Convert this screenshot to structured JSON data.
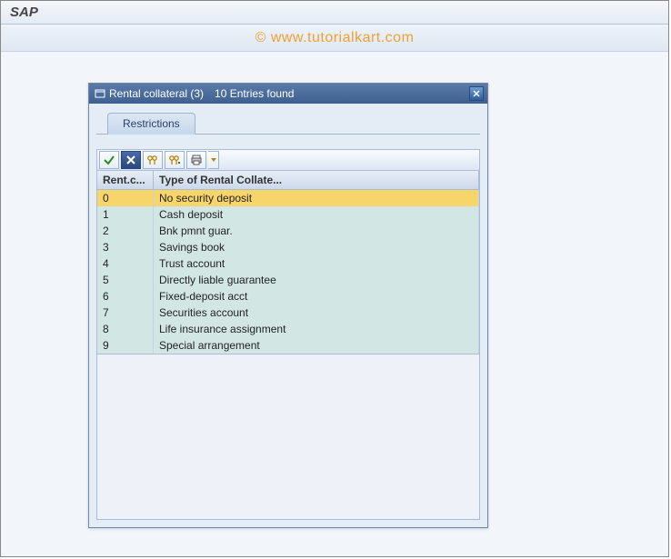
{
  "app": {
    "title": "SAP"
  },
  "watermark": "© www.tutorialkart.com",
  "dialog": {
    "title": "Rental collateral (3)",
    "entries_found": "10 Entries found",
    "tab_label": "Restrictions",
    "columns": {
      "code": "Rent.c...",
      "type": "Type of Rental Collate..."
    },
    "rows": [
      {
        "code": "0",
        "type": "No security deposit",
        "selected": true
      },
      {
        "code": "1",
        "type": "Cash deposit"
      },
      {
        "code": "2",
        "type": "Bnk pmnt guar."
      },
      {
        "code": "3",
        "type": "Savings book"
      },
      {
        "code": "4",
        "type": "Trust account"
      },
      {
        "code": "5",
        "type": "Directly liable guarantee"
      },
      {
        "code": "6",
        "type": "Fixed-deposit acct"
      },
      {
        "code": "7",
        "type": "Securities account"
      },
      {
        "code": "8",
        "type": "Life insurance assignment"
      },
      {
        "code": "9",
        "type": "Special arrangement"
      }
    ]
  },
  "colors": {
    "dialog_header_start": "#5a7ba8",
    "dialog_header_end": "#3e6090",
    "row_bg": "#d2e6e4",
    "row_selected_bg": "#f8d56a",
    "border": "#a9bdd6"
  },
  "icons": {
    "accept": "check-icon",
    "cancel": "cancel-icon",
    "find": "binoculars-icon",
    "find_next": "binoculars-plus-icon",
    "print": "print-icon"
  }
}
